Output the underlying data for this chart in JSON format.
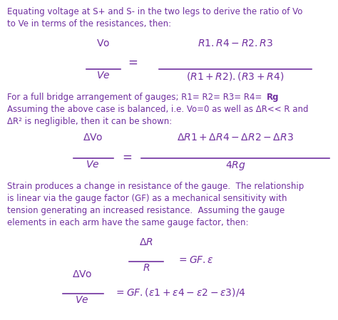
{
  "bg_color": "#ffffff",
  "text_color": "#7030A0",
  "fig_width": 4.74,
  "fig_height": 4.49,
  "font_size_text": 8.5,
  "font_size_eq": 10.0,
  "paragraph1": "Equating voltage at S+ and S- in the two legs to derive the ratio of Vo\nto Ve in terms of the resistances, then:",
  "paragraph2a": "For a full bridge arrangement of gauges; R1= R2= R3= R4= ",
  "paragraph2a_bold": "Rg",
  "paragraph2b": "Assuming the above case is balanced, i.e. Vo=0 as well as ΔR<< R and\nΔR² is negligible, then it can be shown:",
  "paragraph3": "Strain produces a change in resistance of the gauge.  The relationship\nis linear via the gauge factor (GF) as a mechanical sensitivity with\ntension generating an increased resistance.  Assuming the gauge\nelements in each arm have the same gauge factor, then:"
}
